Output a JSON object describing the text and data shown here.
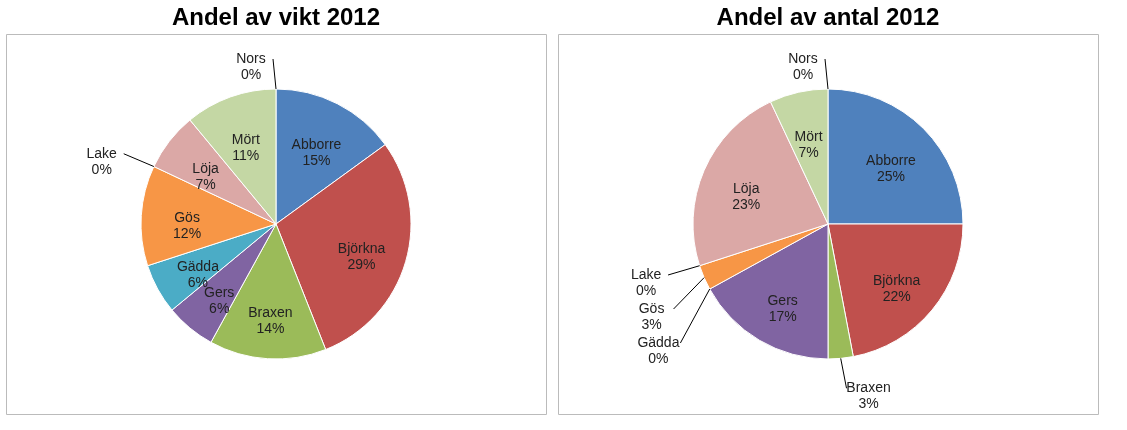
{
  "chart_data": [
    {
      "type": "pie",
      "title": "Andel av vikt 2012",
      "categories": [
        "Abborre",
        "Björkna",
        "Braxen",
        "Gers",
        "Gädda",
        "Gös",
        "Lake",
        "Löja",
        "Mört",
        "Nors"
      ],
      "values": [
        15,
        29,
        14,
        6,
        6,
        12,
        0,
        7,
        11,
        0
      ],
      "value_labels": [
        "15%",
        "29%",
        "14%",
        "6%",
        "6%",
        "12%",
        "0%",
        "7%",
        "11%",
        "0%"
      ],
      "colors": [
        "#4f81bd",
        "#c0504d",
        "#9bbb59",
        "#8064a2",
        "#4bacc6",
        "#f79646",
        "#2c4d75",
        "#dba8a6",
        "#c4d7a4",
        "#772c2a"
      ]
    },
    {
      "type": "pie",
      "title": "Andel av antal 2012",
      "categories": [
        "Abborre",
        "Björkna",
        "Braxen",
        "Gers",
        "Gädda",
        "Gös",
        "Lake",
        "Löja",
        "Mört",
        "Nors"
      ],
      "values": [
        25,
        22,
        3,
        17,
        0,
        3,
        0,
        23,
        7,
        0
      ],
      "value_labels": [
        "25%",
        "22%",
        "3%",
        "17%",
        "0%",
        "3%",
        "0%",
        "23%",
        "7%",
        "0%"
      ],
      "colors": [
        "#4f81bd",
        "#c0504d",
        "#9bbb59",
        "#8064a2",
        "#4bacc6",
        "#f79646",
        "#2c4d75",
        "#dba8a6",
        "#c4d7a4",
        "#772c2a"
      ]
    }
  ]
}
